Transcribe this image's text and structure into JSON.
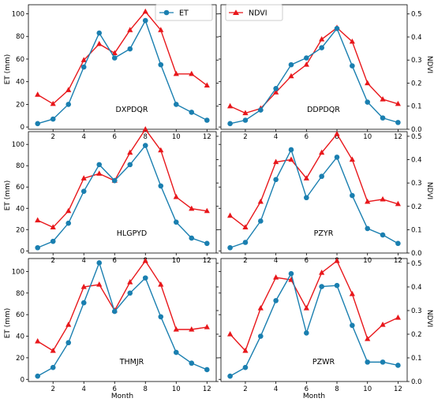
{
  "figure": {
    "legend": {
      "et_label": "ET",
      "ndvi_label": "NDVI"
    },
    "axis_labels": {
      "left": "ET (mm)",
      "right": "NDVI",
      "bottom": "Month"
    },
    "colors": {
      "et": "#1a7fb0",
      "ndvi": "#e8171b"
    }
  },
  "chart_data": {
    "type": "line",
    "layout": "3x2 panels, dual y-axis",
    "x": [
      1,
      2,
      3,
      4,
      5,
      6,
      7,
      8,
      9,
      10,
      11,
      12
    ],
    "x_ticks": [
      2,
      4,
      6,
      8,
      10,
      12
    ],
    "xlim": [
      0.4,
      12.6
    ],
    "xlabel": "Month",
    "ylabel_left": "ET (mm)",
    "ylabel_right": "NDVI",
    "ylim_left_top": [
      -2,
      108
    ],
    "ylim_left_mid_bottom": [
      -2,
      112
    ],
    "ylim_right_top": [
      0,
      0.54
    ],
    "ylim_right_mid_bottom": [
      0,
      0.52
    ],
    "ticks_left_top": [
      0,
      20,
      40,
      60,
      80,
      100
    ],
    "ticks_left_mid_bottom": [
      0,
      20,
      40,
      60,
      80,
      100
    ],
    "ticks_right": [
      0.0,
      0.1,
      0.2,
      0.3,
      0.4,
      0.5
    ],
    "legend": [
      {
        "name": "ET",
        "color": "#1a7fb0",
        "marker": "circle",
        "placement": "upper-right of left-top panel"
      },
      {
        "name": "NDVI",
        "color": "#e8171b",
        "marker": "triangle",
        "placement": "upper-left of right-top panel"
      }
    ],
    "panels": [
      {
        "label": "DXPDQR",
        "series": [
          {
            "name": "ET",
            "axis": "left",
            "values": [
              3,
              7,
              20,
              53,
              83,
              61,
              69,
              94,
              55,
              20,
              13,
              6
            ]
          },
          {
            "name": "NDVI",
            "axis": "right",
            "values": [
              0.15,
              0.11,
              0.17,
              0.3,
              0.37,
              0.33,
              0.43,
              0.51,
              0.43,
              0.24,
              0.24,
              0.19
            ]
          }
        ]
      },
      {
        "label": "DDPDQR",
        "series": [
          {
            "name": "ET",
            "axis": "left",
            "values": [
              3,
              6,
              15,
              34,
              55,
              61,
              70,
              87,
              54,
              22,
              8,
              4
            ]
          },
          {
            "name": "NDVI",
            "axis": "right",
            "values": [
              0.1,
              0.07,
              0.09,
              0.16,
              0.23,
              0.28,
              0.39,
              0.44,
              0.38,
              0.2,
              0.13,
              0.11
            ]
          }
        ]
      },
      {
        "label": "HLGPYD",
        "series": [
          {
            "name": "ET",
            "axis": "left",
            "values": [
              3,
              9,
              26,
              56,
              81,
              66,
              81,
              99,
              61,
              27,
              12,
              7
            ]
          },
          {
            "name": "NDVI",
            "axis": "right",
            "values": [
              0.14,
              0.11,
              0.18,
              0.32,
              0.34,
              0.31,
              0.43,
              0.53,
              0.44,
              0.24,
              0.19,
              0.18
            ]
          }
        ]
      },
      {
        "label": "PZYR",
        "series": [
          {
            "name": "ET",
            "axis": "left",
            "values": [
              3,
              8,
              28,
              67,
              95,
              50,
              70,
              88,
              52,
              21,
              15,
              7
            ]
          },
          {
            "name": "NDVI",
            "axis": "right",
            "values": [
              0.16,
              0.11,
              0.22,
              0.39,
              0.4,
              0.32,
              0.43,
              0.51,
              0.4,
              0.22,
              0.23,
              0.21
            ]
          }
        ]
      },
      {
        "label": "THMJR",
        "series": [
          {
            "name": "ET",
            "axis": "left",
            "values": [
              3,
              11,
              34,
              71,
              108,
              63,
              80,
              94,
              58,
              25,
              15,
              9
            ]
          },
          {
            "name": "NDVI",
            "axis": "right",
            "values": [
              0.17,
              0.13,
              0.24,
              0.4,
              0.41,
              0.3,
              0.42,
              0.51,
              0.41,
              0.22,
              0.22,
              0.23
            ]
          }
        ]
      },
      {
        "label": "PZWR",
        "series": [
          {
            "name": "ET",
            "axis": "left",
            "values": [
              3,
              11,
              40,
              73,
              98,
              43,
              86,
              87,
              50,
              16,
              16,
              13
            ]
          },
          {
            "name": "NDVI",
            "axis": "right",
            "values": [
              0.2,
              0.13,
              0.31,
              0.44,
              0.43,
              0.31,
              0.46,
              0.51,
              0.37,
              0.18,
              0.24,
              0.27
            ]
          }
        ]
      }
    ]
  }
}
